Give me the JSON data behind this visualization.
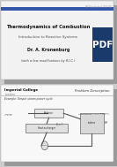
{
  "bg_color": "#cccccc",
  "slide1_bg": "#f2f2f2",
  "slide2_bg": "#f8f8f8",
  "slide1_title": "Thermodynamics of Combustion",
  "slide1_subtitle": "Introduction to Reactive Systems",
  "slide1_author": "Dr. A. Kronenburg",
  "slide1_note": "(with a few modifications by R.I.C.)",
  "slide1_header": "IM Th lecture 4 2007-08",
  "slide2_college": "Imperial College",
  "slide2_location": "London",
  "slide2_right": "Problem Description",
  "slide2_example": "Example: Simple steam power cycle",
  "pdf_bg": "#1a3a6b",
  "pdf_text": "PDF",
  "shadow_color": "#999999",
  "text_dark": "#111111",
  "text_mid": "#444444",
  "text_gray": "#777777"
}
